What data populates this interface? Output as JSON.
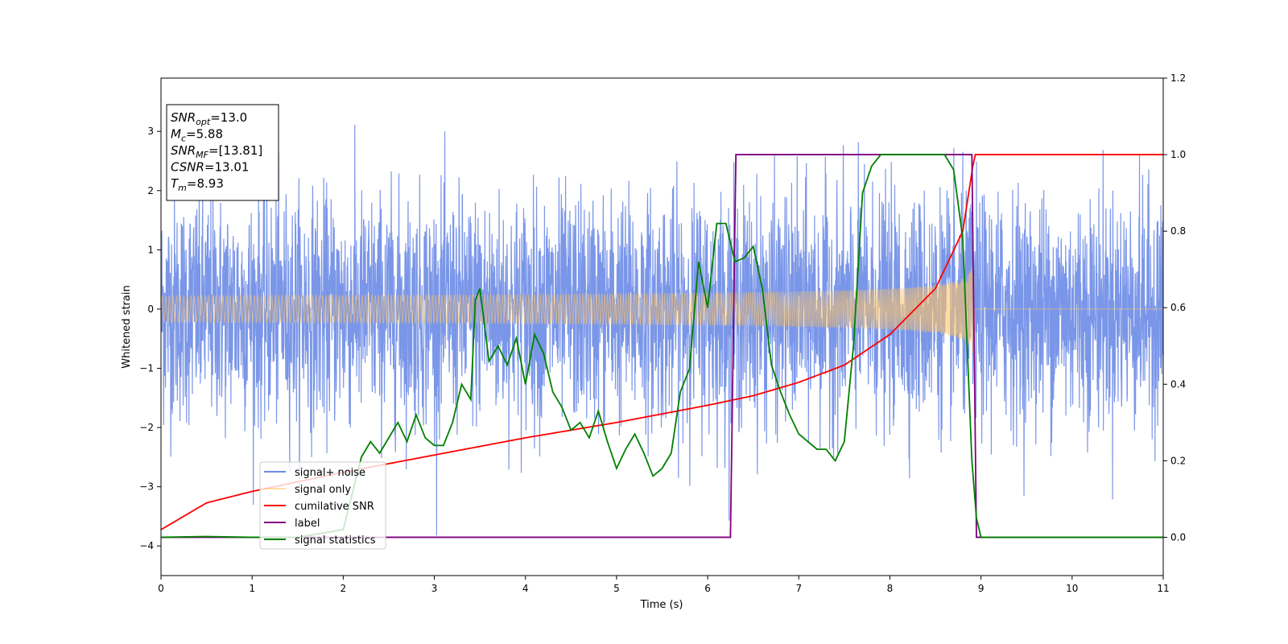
{
  "chart_data": {
    "type": "line",
    "xlabel": "Time (s)",
    "ylabel": "Whitened strain",
    "xlim": [
      0,
      11
    ],
    "ylim_left": [
      -4.5,
      3.9
    ],
    "ylim_right": [
      -0.1,
      1.2
    ],
    "x_ticks": [
      0,
      1,
      2,
      3,
      4,
      5,
      6,
      7,
      8,
      9,
      10,
      11
    ],
    "y_ticks_left": [
      -4,
      -3,
      -2,
      -1,
      0,
      1,
      2,
      3
    ],
    "y_ticks_right": [
      0.0,
      0.2,
      0.4,
      0.6,
      0.8,
      1.0,
      1.2
    ],
    "grid": false,
    "legend_position": "lower-left",
    "annotations": [
      {
        "name": "SNR",
        "sub": "opt",
        "value": "=13.0"
      },
      {
        "name": "M",
        "sub": "c",
        "value": "=5.88"
      },
      {
        "name": "SNR",
        "sub": "MF",
        "value": "=[13.81]"
      },
      {
        "name": "CSNR",
        "sub": "",
        "value": "=13.01"
      },
      {
        "name": "T",
        "sub": "m",
        "value": "=8.93"
      }
    ],
    "series": [
      {
        "name": "signal+ noise",
        "axis": "left",
        "color": "#6b8be6",
        "style": "noise",
        "noise_std": 0.95,
        "x_range": [
          0,
          11
        ]
      },
      {
        "name": "signal only",
        "axis": "left",
        "color": "#ffc466",
        "style": "chirp",
        "x_range": [
          0,
          8.93
        ],
        "amplitude_start": 0.06,
        "amplitude_end": 1.12,
        "flat_after": 0
      },
      {
        "name": "cumilative SNR",
        "axis": "right",
        "color": "#ff0000",
        "x": [
          0,
          0.5,
          1,
          2,
          3,
          4,
          5,
          6,
          6.5,
          7,
          7.5,
          8,
          8.5,
          8.8,
          8.93,
          9,
          10,
          11
        ],
        "values": [
          0.02,
          0.09,
          0.12,
          0.17,
          0.215,
          0.26,
          0.3,
          0.345,
          0.37,
          0.405,
          0.45,
          0.53,
          0.65,
          0.8,
          1.0,
          1.0,
          1.0,
          1.0
        ]
      },
      {
        "name": "label",
        "axis": "right",
        "color": "#800080",
        "x": [
          0,
          6.25,
          6.31,
          8.9,
          8.95,
          11
        ],
        "values": [
          0,
          0,
          1,
          1,
          0,
          0
        ]
      },
      {
        "name": "signal statistics",
        "axis": "right",
        "color": "#007f00",
        "x": [
          0,
          0.5,
          1,
          1.5,
          2,
          2.2,
          2.3,
          2.4,
          2.5,
          2.6,
          2.7,
          2.8,
          2.9,
          3.0,
          3.1,
          3.2,
          3.3,
          3.4,
          3.45,
          3.5,
          3.6,
          3.7,
          3.8,
          3.9,
          4.0,
          4.1,
          4.2,
          4.3,
          4.4,
          4.5,
          4.6,
          4.7,
          4.8,
          4.9,
          5.0,
          5.1,
          5.2,
          5.3,
          5.4,
          5.5,
          5.6,
          5.7,
          5.8,
          5.9,
          6.0,
          6.1,
          6.2,
          6.3,
          6.4,
          6.5,
          6.6,
          6.7,
          6.8,
          6.9,
          7.0,
          7.1,
          7.2,
          7.3,
          7.4,
          7.5,
          7.6,
          7.7,
          7.8,
          7.9,
          8.0,
          8.2,
          8.4,
          8.6,
          8.7,
          8.8,
          8.9,
          8.95,
          9.0,
          9.5,
          10,
          11
        ],
        "values": [
          0,
          0.002,
          0.0,
          0.0,
          0.02,
          0.21,
          0.25,
          0.22,
          0.26,
          0.3,
          0.25,
          0.32,
          0.26,
          0.24,
          0.24,
          0.3,
          0.4,
          0.36,
          0.62,
          0.65,
          0.46,
          0.5,
          0.45,
          0.52,
          0.4,
          0.53,
          0.48,
          0.38,
          0.34,
          0.28,
          0.3,
          0.26,
          0.33,
          0.25,
          0.18,
          0.23,
          0.27,
          0.22,
          0.16,
          0.18,
          0.22,
          0.38,
          0.44,
          0.72,
          0.6,
          0.82,
          0.82,
          0.72,
          0.73,
          0.76,
          0.65,
          0.45,
          0.38,
          0.32,
          0.27,
          0.25,
          0.23,
          0.23,
          0.2,
          0.25,
          0.5,
          0.9,
          0.97,
          1.0,
          1.0,
          1.0,
          1.0,
          1.0,
          0.96,
          0.78,
          0.2,
          0.05,
          0.0,
          0.0,
          0.0,
          0.0
        ]
      }
    ]
  }
}
